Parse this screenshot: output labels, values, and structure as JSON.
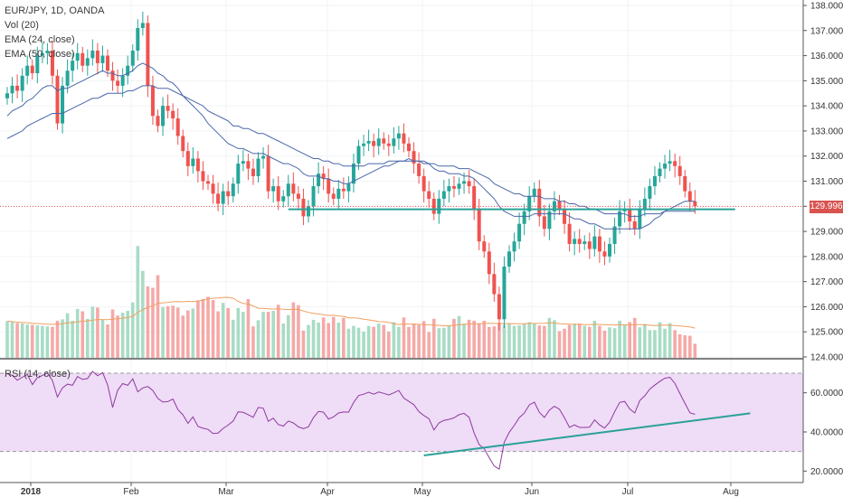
{
  "legend": {
    "symbol": "EUR/JPY, 1D, OANDA",
    "volume": "Vol (20)",
    "ema1": "EMA (24, close)",
    "ema2": "EMA (50, close)",
    "rsi": "RSI (14, close)"
  },
  "last_price_label": "129.996",
  "colors": {
    "up": "#26a69a",
    "down": "#ef5350",
    "ema": "#4a67a8",
    "vol_ma": "#f0a060",
    "rsi": "#8e3a9e",
    "band": "#efdcf7",
    "trend": "#2aa198"
  },
  "chart_data": {
    "type": "candlestick",
    "title": "EUR/JPY, 1D, OANDA",
    "price_axis": {
      "range": [
        124,
        138
      ],
      "ticks": [
        "124.000",
        "125.000",
        "126.000",
        "127.000",
        "128.000",
        "129.000",
        "130.000",
        "131.000",
        "132.000",
        "133.000",
        "134.000",
        "135.000",
        "136.000",
        "137.000",
        "138.000"
      ]
    },
    "rsi_axis": {
      "range": [
        16,
        76
      ],
      "ticks": [
        "20.0000",
        "40.0000",
        "60.0000"
      ],
      "bands": [
        30,
        70
      ]
    },
    "time_axis": [
      "2018",
      "Feb",
      "Mar",
      "Apr",
      "May",
      "Jun",
      "Jul",
      "Aug"
    ],
    "last_price": 129.996,
    "support_level": 129.88,
    "closes": [
      134.5,
      134.8,
      134.6,
      135.2,
      135.6,
      135.3,
      136.0,
      136.1,
      136.2,
      135.2,
      133.3,
      134.8,
      135.4,
      135.8,
      136.1,
      135.6,
      135.9,
      136.2,
      135.7,
      136.0,
      135.4,
      135.0,
      134.8,
      135.2,
      135.6,
      136.2,
      137.1,
      137.3,
      134.8,
      133.6,
      133.2,
      134.0,
      133.8,
      133.5,
      132.8,
      132.2,
      131.6,
      131.9,
      131.4,
      131.0,
      130.9,
      130.5,
      130.1,
      130.6,
      130.4,
      130.9,
      131.7,
      131.8,
      131.5,
      131.2,
      131.9,
      132.0,
      130.6,
      130.8,
      130.2,
      130.4,
      130.9,
      130.5,
      130.3,
      129.6,
      130.0,
      130.8,
      131.3,
      131.1,
      130.5,
      130.3,
      130.7,
      130.6,
      130.9,
      131.7,
      132.4,
      132.5,
      132.6,
      132.4,
      132.7,
      132.5,
      132.4,
      132.7,
      132.9,
      132.5,
      132.2,
      131.7,
      131.2,
      130.6,
      130.3,
      129.7,
      130.3,
      130.6,
      130.8,
      130.7,
      130.9,
      131.0,
      130.8,
      129.9,
      128.6,
      128.2,
      127.3,
      126.5,
      125.5,
      127.6,
      128.2,
      128.6,
      129.3,
      129.8,
      130.4,
      130.7,
      129.6,
      129.1,
      129.8,
      130.2,
      129.9,
      129.3,
      128.5,
      128.7,
      128.5,
      128.6,
      128.3,
      128.8,
      128.2,
      128.0,
      128.5,
      129.2,
      129.8,
      129.9,
      129.4,
      129.1,
      129.9,
      130.3,
      130.8,
      131.2,
      131.5,
      131.7,
      131.8,
      131.6,
      131.2,
      130.6,
      130.2,
      130.0
    ],
    "volumes": [
      0.78,
      0.76,
      0.74,
      0.73,
      0.71,
      0.7,
      0.69,
      0.68,
      0.67,
      0.66,
      0.79,
      0.82,
      0.95,
      0.79,
      1.04,
      0.99,
      0.83,
      1.09,
      1.07,
      0.81,
      0.71,
      1.03,
      0.9,
      0.96,
      1.0,
      1.18,
      2.38,
      1.85,
      1.52,
      1.49,
      1.76,
      1.08,
      1.1,
      1.11,
      1.07,
      0.9,
      1.01,
      1.05,
      1.22,
      1.25,
      1.3,
      1.23,
      0.99,
      1.17,
      1.06,
      0.81,
      1.06,
      0.98,
      1.25,
      0.67,
      0.8,
      0.98,
      0.98,
      1.0,
      1.13,
      0.73,
      0.91,
      1.18,
      1.12,
      0.58,
      0.7,
      0.81,
      0.75,
      0.86,
      0.74,
      0.87,
      0.75,
      0.85,
      0.62,
      0.68,
      0.64,
      0.56,
      0.68,
      0.66,
      0.73,
      0.7,
      0.56,
      0.76,
      0.66,
      0.86,
      0.66,
      0.73,
      0.7,
      0.78,
      0.55,
      0.83,
      0.63,
      0.64,
      0.68,
      0.83,
      0.89,
      0.73,
      0.81,
      0.79,
      0.73,
      0.79,
      0.66,
      0.67,
      0.74,
      0.7,
      0.72,
      0.68,
      0.69,
      0.73,
      0.76,
      0.74,
      0.69,
      0.68,
      0.85,
      0.8,
      0.57,
      0.62,
      0.7,
      0.73,
      0.73,
      0.68,
      0.66,
      0.79,
      0.68,
      0.58,
      0.65,
      0.63,
      0.79,
      0.71,
      0.76,
      0.85,
      0.65,
      0.72,
      0.59,
      0.59,
      0.76,
      0.62,
      0.74,
      0.59,
      0.5,
      0.48,
      0.47,
      0.3
    ],
    "rsi": [
      69.7,
      68.9,
      66.4,
      67.9,
      69.4,
      64.2,
      67.8,
      68.8,
      70.1,
      66.3,
      57.8,
      62.5,
      64.4,
      63.8,
      68.3,
      66.8,
      67.3,
      70.9,
      68.7,
      70.3,
      64.0,
      52.5,
      61.3,
      64.7,
      63.8,
      67.1,
      60.5,
      62.5,
      63.2,
      61.2,
      57.1,
      55.3,
      55.5,
      56.8,
      51.4,
      48.7,
      44.4,
      47.7,
      42.8,
      41.9,
      41.3,
      39.2,
      39.4,
      41.8,
      43.5,
      45.6,
      50.3,
      50.0,
      48.8,
      47.5,
      52.5,
      52.1,
      45.4,
      47.0,
      43.8,
      43.0,
      45.6,
      44.6,
      42.6,
      41.7,
      42.6,
      47.4,
      50.5,
      50.1,
      46.6,
      47.7,
      49.7,
      50.2,
      50.1,
      55.0,
      58.6,
      59.3,
      60.3,
      59.3,
      60.4,
      59.7,
      58.9,
      60.0,
      61.2,
      57.3,
      55.6,
      53.9,
      50.4,
      48.4,
      46.8,
      41.0,
      44.6,
      45.9,
      46.4,
      47.2,
      48.8,
      49.5,
      47.5,
      39.6,
      33.6,
      31.5,
      26.9,
      22.6,
      21.0,
      34.6,
      39.8,
      43.3,
      47.3,
      49.6,
      53.8,
      55.2,
      50.0,
      47.4,
      51.1,
      53.1,
      51.6,
      47.3,
      42.3,
      43.6,
      42.3,
      42.3,
      42.4,
      46.2,
      43.6,
      42.0,
      45.0,
      50.3,
      55.1,
      55.6,
      51.7,
      49.7,
      56.0,
      58.5,
      61.9,
      63.9,
      65.8,
      67.4,
      67.9,
      64.9,
      59.6,
      54.6,
      49.8,
      49.0
    ],
    "ema_24": [
      133.6,
      133.8,
      133.9,
      134.0,
      134.2,
      134.3,
      134.5,
      134.7,
      134.8,
      134.8,
      134.6,
      134.7,
      134.7,
      134.8,
      134.9,
      135.0,
      135.1,
      135.2,
      135.3,
      135.4,
      135.3,
      135.3,
      135.2,
      135.2,
      135.3,
      135.4,
      135.6,
      135.7,
      135.6,
      135.5,
      135.3,
      135.2,
      135.0,
      134.9,
      134.7,
      134.4,
      134.2,
      134.0,
      133.8,
      133.6,
      133.3,
      133.1,
      132.9,
      132.7,
      132.5,
      132.4,
      132.3,
      132.3,
      132.2,
      132.1,
      132.1,
      132.1,
      132.0,
      131.9,
      131.8,
      131.7,
      131.7,
      131.6,
      131.5,
      131.3,
      131.2,
      131.2,
      131.2,
      131.1,
      131.1,
      131.0,
      131.0,
      130.9,
      130.9,
      131.0,
      131.1,
      131.2,
      131.3,
      131.4,
      131.5,
      131.6,
      131.6,
      131.7,
      131.8,
      131.8,
      131.9,
      131.8,
      131.8,
      131.7,
      131.7,
      131.5,
      131.4,
      131.4,
      131.3,
      131.3,
      131.3,
      131.2,
      131.2,
      131.1,
      130.9,
      130.7,
      130.5,
      130.3,
      130.0,
      129.8,
      129.7,
      129.6,
      129.6,
      129.6,
      129.6,
      129.7,
      129.7,
      129.7,
      129.7,
      129.7,
      129.7,
      129.7,
      129.6,
      129.5,
      129.5,
      129.4,
      129.3,
      129.3,
      129.2,
      129.1,
      129.1,
      129.1,
      129.1,
      129.1,
      129.1,
      129.1,
      129.1,
      129.2,
      129.3,
      129.5,
      129.6,
      129.8,
      129.9,
      130.0,
      130.1,
      130.2,
      130.2,
      130.2
    ],
    "ema_50": [
      132.7,
      132.8,
      132.9,
      133.0,
      133.2,
      133.3,
      133.4,
      133.5,
      133.6,
      133.7,
      133.7,
      133.7,
      133.8,
      133.9,
      134.0,
      134.1,
      134.2,
      134.3,
      134.3,
      134.4,
      134.5,
      134.5,
      134.5,
      134.5,
      134.6,
      134.6,
      134.7,
      134.8,
      134.8,
      134.8,
      134.7,
      134.7,
      134.7,
      134.6,
      134.5,
      134.4,
      134.3,
      134.2,
      134.1,
      134.0,
      133.8,
      133.7,
      133.6,
      133.5,
      133.4,
      133.2,
      133.2,
      133.1,
      133.1,
      133.0,
      132.9,
      132.9,
      132.8,
      132.7,
      132.6,
      132.5,
      132.4,
      132.3,
      132.2,
      132.1,
      132.0,
      131.9,
      131.9,
      131.8,
      131.8,
      131.7,
      131.7,
      131.6,
      131.6,
      131.6,
      131.6,
      131.6,
      131.7,
      131.7,
      131.7,
      131.7,
      131.8,
      131.8,
      131.8,
      131.8,
      131.8,
      131.8,
      131.8,
      131.8,
      131.7,
      131.7,
      131.6,
      131.6,
      131.6,
      131.6,
      131.5,
      131.5,
      131.5,
      131.4,
      131.3,
      131.2,
      131.1,
      130.9,
      130.8,
      130.7,
      130.6,
      130.5,
      130.5,
      130.4,
      130.4,
      130.4,
      130.4,
      130.3,
      130.3,
      130.3,
      130.2,
      130.2,
      130.1,
      130.1,
      130.0,
      130.0,
      129.9,
      129.9,
      129.8,
      129.7,
      129.7,
      129.7,
      129.7,
      129.7,
      129.6,
      129.6,
      129.6,
      129.7,
      129.7,
      129.7,
      129.7,
      129.8,
      129.8,
      129.8,
      129.8,
      129.8,
      129.8,
      129.8
    ]
  }
}
